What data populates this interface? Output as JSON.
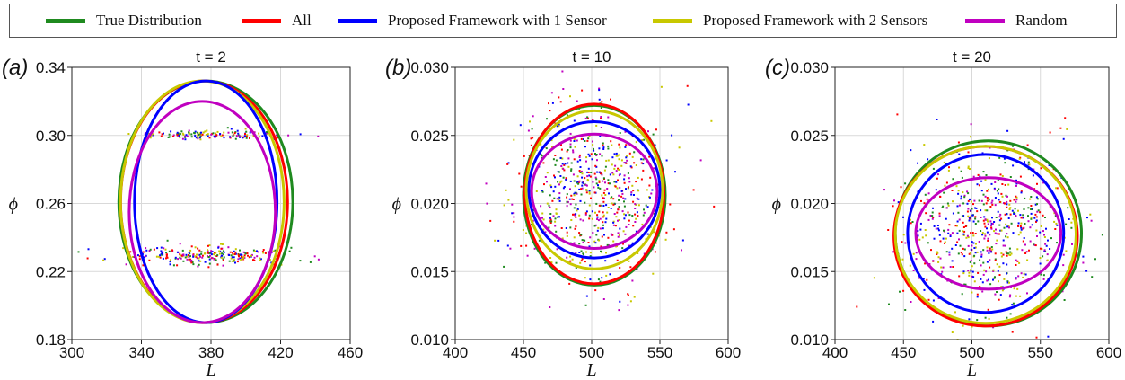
{
  "legend": {
    "items": [
      {
        "label": "True Distribution",
        "color": "#1f8a1f"
      },
      {
        "label": "All",
        "color": "#ff0000"
      },
      {
        "label": "Proposed Framework with 1 Sensor",
        "color": "#0000ff"
      },
      {
        "label": "Proposed Framework with 2 Sensors",
        "color": "#c8c800"
      },
      {
        "label": "Random",
        "color": "#c000c0"
      }
    ]
  },
  "chart_data": [
    {
      "type": "scatter",
      "panel_label": "(a)",
      "title": "t = 2",
      "xlabel": "L",
      "ylabel": "ϕ",
      "xlim": [
        300,
        460
      ],
      "ylim": [
        0.18,
        0.34
      ],
      "xticks": [
        "300",
        "340",
        "380",
        "420",
        "460"
      ],
      "yticks": [
        "0.18",
        "0.22",
        "0.26",
        "0.30",
        "0.34"
      ],
      "grid": true,
      "ellipses": [
        {
          "series": "True Distribution",
          "cx": 377,
          "cy": 0.261,
          "rx": 50,
          "ry": 0.071,
          "color": "#1f8a1f"
        },
        {
          "series": "All",
          "cx": 376,
          "cy": 0.261,
          "rx": 48,
          "ry": 0.071,
          "color": "#ff0000"
        },
        {
          "series": "Proposed Framework with 2 Sensors",
          "cx": 375,
          "cy": 0.261,
          "rx": 47,
          "ry": 0.071,
          "color": "#c8c800"
        },
        {
          "series": "Proposed Framework with 1 Sensor",
          "cx": 377,
          "cy": 0.261,
          "rx": 41,
          "ry": 0.071,
          "color": "#0000ff"
        },
        {
          "series": "Random",
          "cx": 375,
          "cy": 0.255,
          "rx": 42,
          "ry": 0.065,
          "color": "#c000c0"
        }
      ],
      "scatter_bands": [
        {
          "cx": 380,
          "cy": 0.301,
          "sx": 22,
          "sy": 0.0014,
          "n": 150
        },
        {
          "cx": 378,
          "cy": 0.23,
          "sx": 24,
          "sy": 0.0025,
          "n": 260
        }
      ]
    },
    {
      "type": "scatter",
      "panel_label": "(b)",
      "title": "t = 10",
      "xlabel": "L",
      "ylabel": "ϕ",
      "xlim": [
        400,
        600
      ],
      "ylim": [
        0.01,
        0.03
      ],
      "xticks": [
        "400",
        "450",
        "500",
        "550",
        "600"
      ],
      "yticks": [
        "0.010",
        "0.015",
        "0.020",
        "0.025",
        "0.030"
      ],
      "grid": true,
      "ellipses": [
        {
          "series": "True Distribution",
          "cx": 502,
          "cy": 0.0206,
          "rx": 52,
          "ry": 0.0066,
          "color": "#1f8a1f"
        },
        {
          "series": "All",
          "cx": 502,
          "cy": 0.0207,
          "rx": 51,
          "ry": 0.0066,
          "color": "#ff0000"
        },
        {
          "series": "Proposed Framework with 2 Sensors",
          "cx": 502,
          "cy": 0.021,
          "rx": 50,
          "ry": 0.0058,
          "color": "#c8c800"
        },
        {
          "series": "Proposed Framework with 1 Sensor",
          "cx": 502,
          "cy": 0.021,
          "rx": 48,
          "ry": 0.005,
          "color": "#0000ff"
        },
        {
          "series": "Random",
          "cx": 502,
          "cy": 0.0209,
          "rx": 46,
          "ry": 0.0042,
          "color": "#c000c0"
        }
      ],
      "scatter_bands": [
        {
          "cx": 500,
          "cy": 0.021,
          "sx": 28,
          "sy": 0.0032,
          "n": 700
        }
      ]
    },
    {
      "type": "scatter",
      "panel_label": "(c)",
      "title": "t = 20",
      "xlabel": "L",
      "ylabel": "ϕ",
      "xlim": [
        400,
        600
      ],
      "ylim": [
        0.01,
        0.03
      ],
      "xticks": [
        "400",
        "450",
        "500",
        "550",
        "600"
      ],
      "yticks": [
        "0.010",
        "0.015",
        "0.020",
        "0.025",
        "0.030"
      ],
      "grid": true,
      "ellipses": [
        {
          "series": "True Distribution",
          "cx": 512,
          "cy": 0.0178,
          "rx": 68,
          "ry": 0.0068,
          "color": "#1f8a1f"
        },
        {
          "series": "All",
          "cx": 510,
          "cy": 0.0176,
          "rx": 67,
          "ry": 0.0066,
          "color": "#ff0000"
        },
        {
          "series": "Proposed Framework with 2 Sensors",
          "cx": 510,
          "cy": 0.0177,
          "rx": 66,
          "ry": 0.0065,
          "color": "#c8c800"
        },
        {
          "series": "Proposed Framework with 1 Sensor",
          "cx": 510,
          "cy": 0.0178,
          "rx": 57,
          "ry": 0.0058,
          "color": "#0000ff"
        },
        {
          "series": "Random",
          "cx": 512,
          "cy": 0.0178,
          "rx": 53,
          "ry": 0.0041,
          "color": "#c000c0"
        }
      ],
      "scatter_bands": [
        {
          "cx": 510,
          "cy": 0.018,
          "sx": 32,
          "sy": 0.003,
          "n": 700
        }
      ]
    }
  ]
}
